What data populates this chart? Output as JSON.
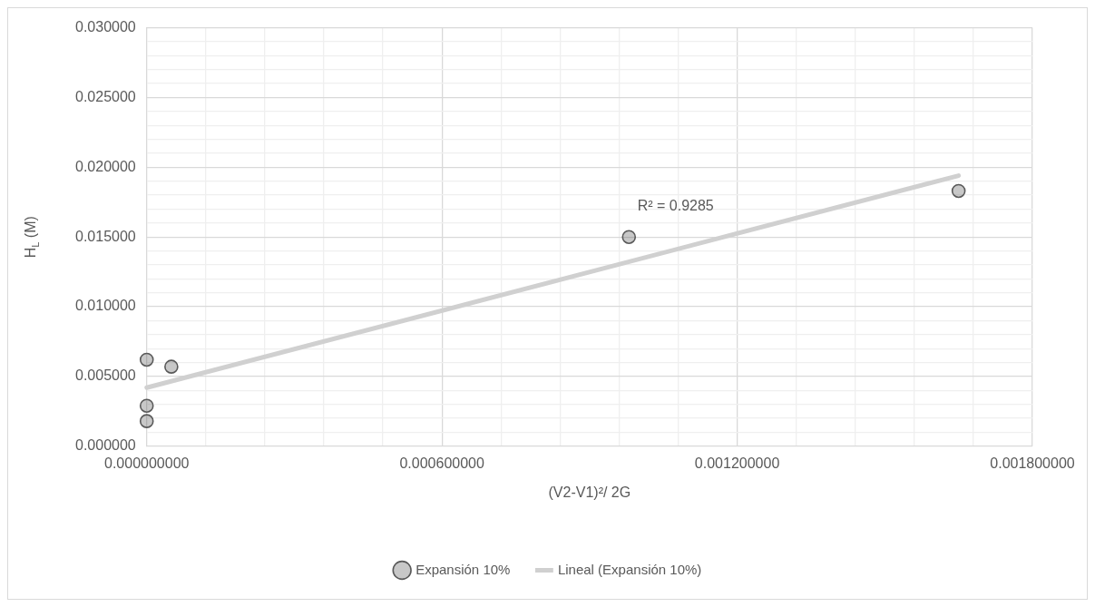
{
  "chart_data": {
    "type": "scatter",
    "xlabel": "(V2-V1)²/ 2G",
    "ylabel": "H$_{L}$ (M)",
    "series": [
      {
        "name": "Expansión 10%",
        "type": "scatter",
        "color": "#595959",
        "marker": "circle",
        "x": [
          0,
          5e-05,
          0,
          0,
          0.00098,
          0.00165
        ],
        "values": [
          0.0062,
          0.0057,
          0.0029,
          0.0018,
          0.015,
          0.0183
        ]
      },
      {
        "name": "Lineal (Expansión 10%)",
        "type": "line",
        "color": "#d0d0d0",
        "marker": "none",
        "x": [
          0,
          0.00165
        ],
        "values": [
          0.0042,
          0.0194
        ]
      }
    ],
    "annotations": [
      "R² = 0.9285"
    ],
    "xlim": [
      0,
      0.0018
    ],
    "xticks": [
      {
        "value": 0,
        "label": "0.000000000"
      },
      {
        "value": 0.00012,
        "label": null
      },
      {
        "value": 0.00024,
        "label": null
      },
      {
        "value": 0.00036,
        "label": null
      },
      {
        "value": 0.00048,
        "label": null
      },
      {
        "value": 0.0006,
        "label": "0.000600000"
      },
      {
        "value": 0.00072,
        "label": null
      },
      {
        "value": 0.00084,
        "label": null
      },
      {
        "value": 0.00096,
        "label": null
      },
      {
        "value": 0.00108,
        "label": null
      },
      {
        "value": 0.0012,
        "label": "0.001200000"
      },
      {
        "value": 0.00132,
        "label": null
      },
      {
        "value": 0.00144,
        "label": null
      },
      {
        "value": 0.00156,
        "label": null
      },
      {
        "value": 0.00168,
        "label": null
      },
      {
        "value": 0.0018,
        "label": "0.001800000"
      }
    ],
    "ylim": [
      0,
      0.03
    ],
    "yticks": [
      {
        "value": 0,
        "label": "0.000000"
      },
      {
        "value": 0.001,
        "label": null
      },
      {
        "value": 0.002,
        "label": null
      },
      {
        "value": 0.003,
        "label": null
      },
      {
        "value": 0.004,
        "label": null
      },
      {
        "value": 0.005,
        "label": "0.005000"
      },
      {
        "value": 0.006,
        "label": null
      },
      {
        "value": 0.007,
        "label": null
      },
      {
        "value": 0.008,
        "label": null
      },
      {
        "value": 0.009,
        "label": null
      },
      {
        "value": 0.01,
        "label": "0.010000"
      },
      {
        "value": 0.011,
        "label": null
      },
      {
        "value": 0.012,
        "label": null
      },
      {
        "value": 0.013,
        "label": null
      },
      {
        "value": 0.014,
        "label": null
      },
      {
        "value": 0.015,
        "label": "0.015000"
      },
      {
        "value": 0.016,
        "label": null
      },
      {
        "value": 0.017,
        "label": null
      },
      {
        "value": 0.018,
        "label": null
      },
      {
        "value": 0.019,
        "label": null
      },
      {
        "value": 0.02,
        "label": "0.020000"
      },
      {
        "value": 0.021,
        "label": null
      },
      {
        "value": 0.022,
        "label": null
      },
      {
        "value": 0.023,
        "label": null
      },
      {
        "value": 0.024,
        "label": null
      },
      {
        "value": 0.025,
        "label": "0.025000"
      },
      {
        "value": 0.026,
        "label": null
      },
      {
        "value": 0.027,
        "label": null
      },
      {
        "value": 0.028,
        "label": null
      },
      {
        "value": 0.029,
        "label": null
      },
      {
        "value": 0.03,
        "label": "0.030000"
      }
    ],
    "grid": true,
    "legend": "bottom"
  }
}
